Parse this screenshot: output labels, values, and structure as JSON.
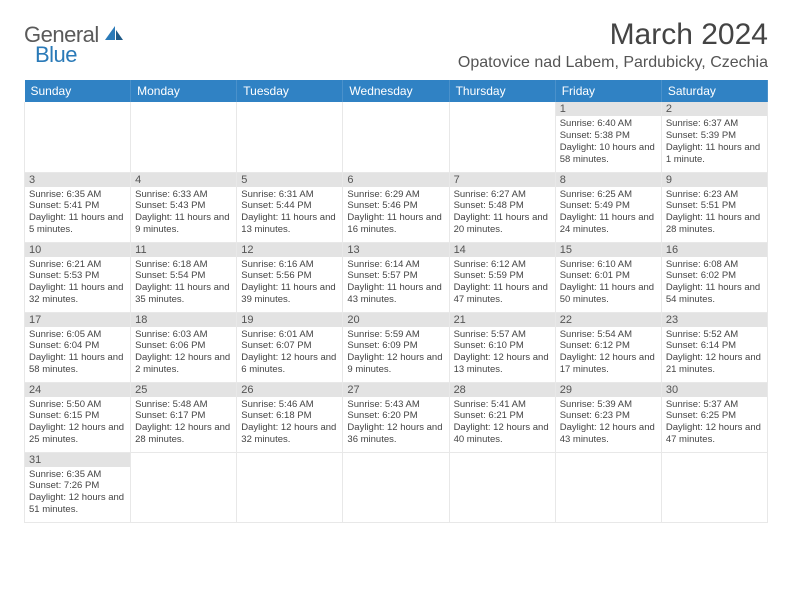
{
  "logo": {
    "text1": "General",
    "text2": "Blue"
  },
  "title": "March 2024",
  "location": "Opatovice nad Labem, Pardubicky, Czechia",
  "headers": [
    "Sunday",
    "Monday",
    "Tuesday",
    "Wednesday",
    "Thursday",
    "Friday",
    "Saturday"
  ],
  "colors": {
    "header_bg": "#3082c4",
    "header_fg": "#ffffff",
    "daynum_bg": "#e3e3e3",
    "text": "#444444",
    "logo_gray": "#5a5a5a",
    "logo_blue": "#2a7ab8"
  },
  "weeks": [
    [
      null,
      null,
      null,
      null,
      null,
      {
        "n": "1",
        "sr": "6:40 AM",
        "ss": "5:38 PM",
        "dl": "10 hours and 58 minutes."
      },
      {
        "n": "2",
        "sr": "6:37 AM",
        "ss": "5:39 PM",
        "dl": "11 hours and 1 minute."
      }
    ],
    [
      {
        "n": "3",
        "sr": "6:35 AM",
        "ss": "5:41 PM",
        "dl": "11 hours and 5 minutes."
      },
      {
        "n": "4",
        "sr": "6:33 AM",
        "ss": "5:43 PM",
        "dl": "11 hours and 9 minutes."
      },
      {
        "n": "5",
        "sr": "6:31 AM",
        "ss": "5:44 PM",
        "dl": "11 hours and 13 minutes."
      },
      {
        "n": "6",
        "sr": "6:29 AM",
        "ss": "5:46 PM",
        "dl": "11 hours and 16 minutes."
      },
      {
        "n": "7",
        "sr": "6:27 AM",
        "ss": "5:48 PM",
        "dl": "11 hours and 20 minutes."
      },
      {
        "n": "8",
        "sr": "6:25 AM",
        "ss": "5:49 PM",
        "dl": "11 hours and 24 minutes."
      },
      {
        "n": "9",
        "sr": "6:23 AM",
        "ss": "5:51 PM",
        "dl": "11 hours and 28 minutes."
      }
    ],
    [
      {
        "n": "10",
        "sr": "6:21 AM",
        "ss": "5:53 PM",
        "dl": "11 hours and 32 minutes."
      },
      {
        "n": "11",
        "sr": "6:18 AM",
        "ss": "5:54 PM",
        "dl": "11 hours and 35 minutes."
      },
      {
        "n": "12",
        "sr": "6:16 AM",
        "ss": "5:56 PM",
        "dl": "11 hours and 39 minutes."
      },
      {
        "n": "13",
        "sr": "6:14 AM",
        "ss": "5:57 PM",
        "dl": "11 hours and 43 minutes."
      },
      {
        "n": "14",
        "sr": "6:12 AM",
        "ss": "5:59 PM",
        "dl": "11 hours and 47 minutes."
      },
      {
        "n": "15",
        "sr": "6:10 AM",
        "ss": "6:01 PM",
        "dl": "11 hours and 50 minutes."
      },
      {
        "n": "16",
        "sr": "6:08 AM",
        "ss": "6:02 PM",
        "dl": "11 hours and 54 minutes."
      }
    ],
    [
      {
        "n": "17",
        "sr": "6:05 AM",
        "ss": "6:04 PM",
        "dl": "11 hours and 58 minutes."
      },
      {
        "n": "18",
        "sr": "6:03 AM",
        "ss": "6:06 PM",
        "dl": "12 hours and 2 minutes."
      },
      {
        "n": "19",
        "sr": "6:01 AM",
        "ss": "6:07 PM",
        "dl": "12 hours and 6 minutes."
      },
      {
        "n": "20",
        "sr": "5:59 AM",
        "ss": "6:09 PM",
        "dl": "12 hours and 9 minutes."
      },
      {
        "n": "21",
        "sr": "5:57 AM",
        "ss": "6:10 PM",
        "dl": "12 hours and 13 minutes."
      },
      {
        "n": "22",
        "sr": "5:54 AM",
        "ss": "6:12 PM",
        "dl": "12 hours and 17 minutes."
      },
      {
        "n": "23",
        "sr": "5:52 AM",
        "ss": "6:14 PM",
        "dl": "12 hours and 21 minutes."
      }
    ],
    [
      {
        "n": "24",
        "sr": "5:50 AM",
        "ss": "6:15 PM",
        "dl": "12 hours and 25 minutes."
      },
      {
        "n": "25",
        "sr": "5:48 AM",
        "ss": "6:17 PM",
        "dl": "12 hours and 28 minutes."
      },
      {
        "n": "26",
        "sr": "5:46 AM",
        "ss": "6:18 PM",
        "dl": "12 hours and 32 minutes."
      },
      {
        "n": "27",
        "sr": "5:43 AM",
        "ss": "6:20 PM",
        "dl": "12 hours and 36 minutes."
      },
      {
        "n": "28",
        "sr": "5:41 AM",
        "ss": "6:21 PM",
        "dl": "12 hours and 40 minutes."
      },
      {
        "n": "29",
        "sr": "5:39 AM",
        "ss": "6:23 PM",
        "dl": "12 hours and 43 minutes."
      },
      {
        "n": "30",
        "sr": "5:37 AM",
        "ss": "6:25 PM",
        "dl": "12 hours and 47 minutes."
      }
    ],
    [
      {
        "n": "31",
        "sr": "6:35 AM",
        "ss": "7:26 PM",
        "dl": "12 hours and 51 minutes."
      },
      null,
      null,
      null,
      null,
      null,
      null
    ]
  ],
  "labels": {
    "sunrise": "Sunrise:",
    "sunset": "Sunset:",
    "daylight": "Daylight:"
  }
}
